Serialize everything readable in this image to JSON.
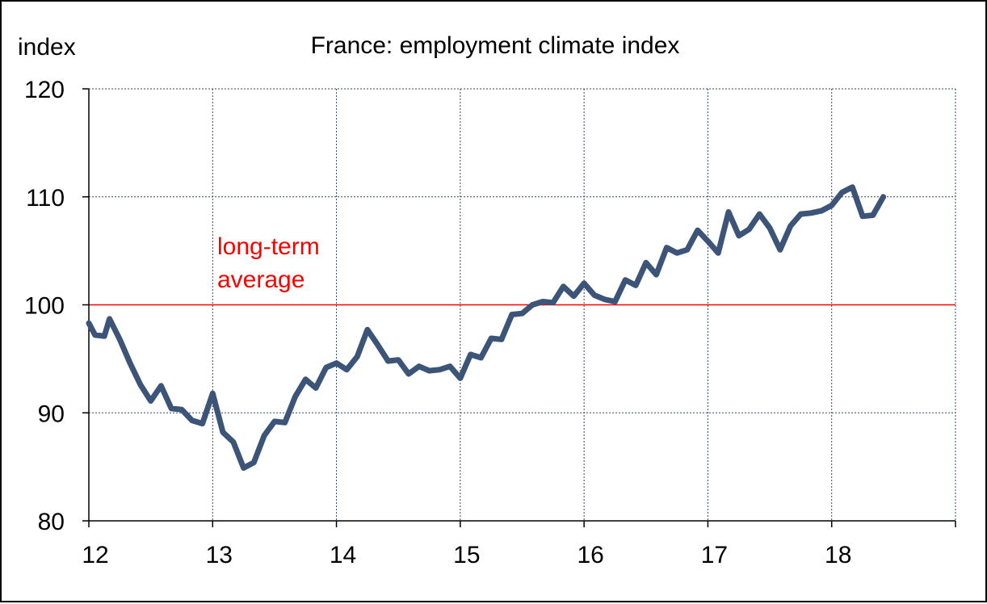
{
  "chart_data": {
    "type": "line",
    "title": "France: employment climate index",
    "ylabel": "index",
    "xlabel": "",
    "ylim": [
      80,
      120
    ],
    "xlim": [
      2012,
      2019
    ],
    "yticks": [
      "80",
      "90",
      "100",
      "110",
      "120"
    ],
    "ytick_values": [
      80,
      90,
      100,
      110,
      120
    ],
    "xticks": [
      "12",
      "13",
      "14",
      "15",
      "16",
      "17",
      "18"
    ],
    "xtick_values": [
      2012,
      2013,
      2014,
      2015,
      2016,
      2017,
      2018
    ],
    "grid": true,
    "reference_line": {
      "value": 100,
      "label_lines": [
        "long-term",
        "average"
      ],
      "color": "#ff0000"
    },
    "series": [
      {
        "color": "#3b5478",
        "x": [
          2012.0,
          2012.05,
          2012.125,
          2012.167,
          2012.25,
          2012.333,
          2012.417,
          2012.5,
          2012.583,
          2012.667,
          2012.75,
          2012.833,
          2012.917,
          2013.0,
          2013.083,
          2013.167,
          2013.25,
          2013.333,
          2013.417,
          2013.5,
          2013.583,
          2013.667,
          2013.75,
          2013.833,
          2013.917,
          2014.0,
          2014.083,
          2014.167,
          2014.25,
          2014.333,
          2014.417,
          2014.5,
          2014.583,
          2014.667,
          2014.75,
          2014.833,
          2014.917,
          2015.0,
          2015.083,
          2015.167,
          2015.25,
          2015.333,
          2015.417,
          2015.5,
          2015.583,
          2015.667,
          2015.75,
          2015.833,
          2015.917,
          2016.0,
          2016.083,
          2016.167,
          2016.25,
          2016.333,
          2016.417,
          2016.5,
          2016.583,
          2016.667,
          2016.75,
          2016.833,
          2016.917,
          2017.0,
          2017.083,
          2017.167,
          2017.25,
          2017.333,
          2017.417,
          2017.5,
          2017.583,
          2017.667,
          2017.75,
          2017.833,
          2017.917,
          2018.0,
          2018.083,
          2018.167,
          2018.25,
          2018.333,
          2018.417
        ],
        "y": [
          98.3,
          97.2,
          97.1,
          98.7,
          96.8,
          94.6,
          92.6,
          91.1,
          92.5,
          90.4,
          90.3,
          89.3,
          89.0,
          91.8,
          88.2,
          87.3,
          84.9,
          85.4,
          87.9,
          89.2,
          89.1,
          91.5,
          93.1,
          92.3,
          94.2,
          94.6,
          94.0,
          95.2,
          97.7,
          96.3,
          94.8,
          94.9,
          93.6,
          94.3,
          93.9,
          94.0,
          94.3,
          93.2,
          95.4,
          95.1,
          96.9,
          96.8,
          99.1,
          99.2,
          100.0,
          100.3,
          100.2,
          101.7,
          100.8,
          102.0,
          100.9,
          100.5,
          100.3,
          102.3,
          101.8,
          103.9,
          102.8,
          105.3,
          104.8,
          105.1,
          106.9,
          105.9,
          104.8,
          108.6,
          106.4,
          107.0,
          108.4,
          107.1,
          105.1,
          107.3,
          108.4,
          108.5,
          108.7,
          109.2,
          110.4,
          110.9,
          108.2,
          108.3,
          110.0
        ]
      }
    ]
  }
}
